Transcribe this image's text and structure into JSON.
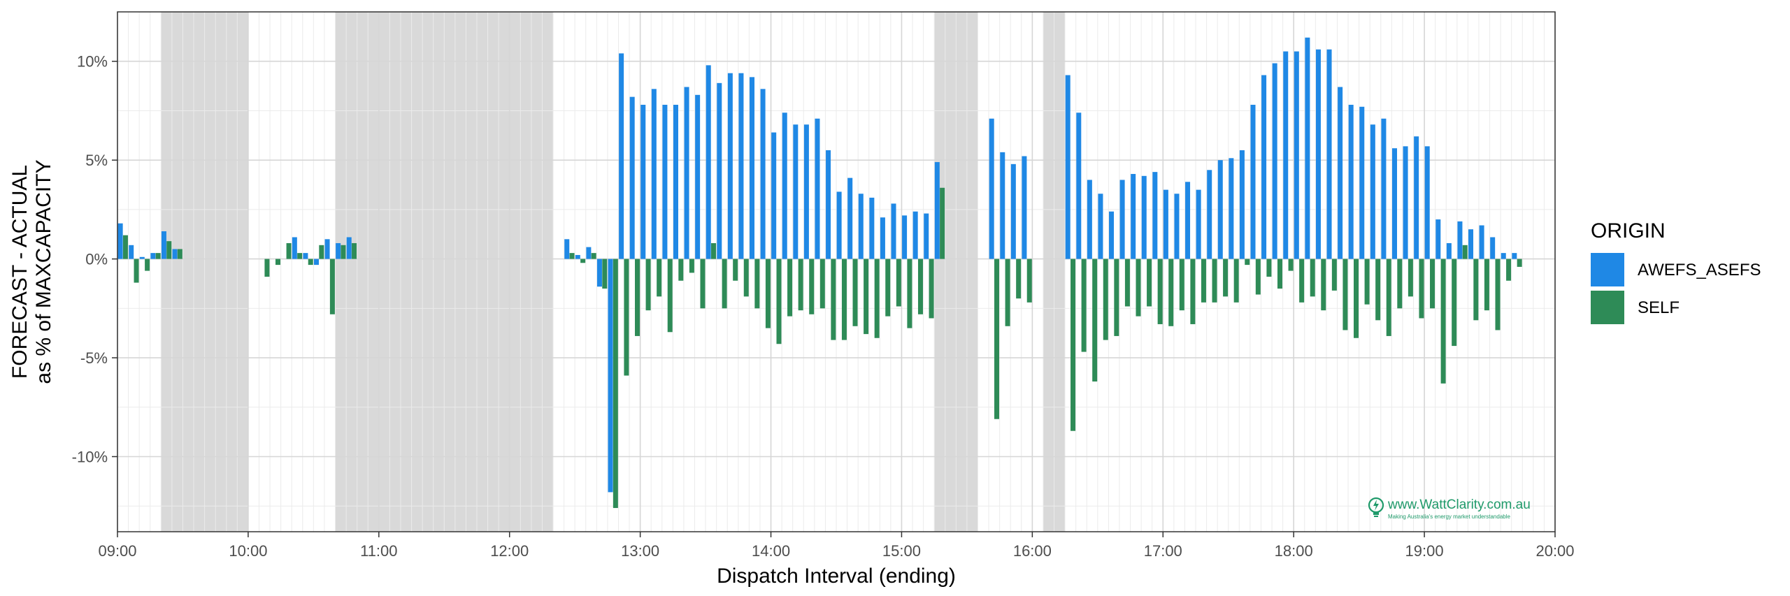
{
  "chart_data": {
    "type": "bar",
    "xlabel": "Dispatch Interval (ending)",
    "ylabel": [
      "FORECAST - ACTUAL",
      "as % of MAXCAPACITY"
    ],
    "x_ticks": [
      "09:00",
      "10:00",
      "11:00",
      "12:00",
      "13:00",
      "14:00",
      "15:00",
      "16:00",
      "17:00",
      "18:00",
      "19:00",
      "20:00"
    ],
    "y_ticks": [
      {
        "value": 10,
        "label": "10%"
      },
      {
        "value": 5,
        "label": "5%"
      },
      {
        "value": 0,
        "label": "0%"
      },
      {
        "value": -5,
        "label": "-5%"
      },
      {
        "value": -10,
        "label": "-10%"
      }
    ],
    "x_domain_hours": [
      9,
      20
    ],
    "y_domain": [
      -13.8,
      12.5
    ],
    "grid": true,
    "shaded_periods": [
      [
        "09:20",
        "10:00"
      ],
      [
        "10:40",
        "12:20"
      ],
      [
        "15:15",
        "15:35"
      ],
      [
        "16:05",
        "16:15"
      ]
    ],
    "legend": {
      "title": "ORIGIN",
      "position": "right",
      "items": [
        {
          "label": "AWEFS_ASEFS",
          "color": "#1f88e5"
        },
        {
          "label": "SELF",
          "color": "#2e8b57"
        }
      ]
    },
    "series": [
      {
        "name": "AWEFS_ASEFS",
        "color": "#1f88e5",
        "points": [
          [
            "09:05",
            1.8
          ],
          [
            "09:10",
            0.7
          ],
          [
            "09:15",
            0.1
          ],
          [
            "09:20",
            0.3
          ],
          [
            "09:25",
            1.4
          ],
          [
            "09:30",
            0.5
          ],
          [
            "10:25",
            1.1
          ],
          [
            "10:30",
            0.3
          ],
          [
            "10:35",
            -0.3
          ],
          [
            "10:40",
            1.0
          ],
          [
            "10:45",
            0.8
          ],
          [
            "10:50",
            1.1
          ],
          [
            "12:30",
            1.0
          ],
          [
            "12:35",
            0.2
          ],
          [
            "12:40",
            0.6
          ],
          [
            "12:45",
            -1.4
          ],
          [
            "12:50",
            -11.8
          ],
          [
            "12:55",
            10.4
          ],
          [
            "13:00",
            8.2
          ],
          [
            "13:05",
            7.8
          ],
          [
            "13:10",
            8.6
          ],
          [
            "13:15",
            7.8
          ],
          [
            "13:20",
            7.8
          ],
          [
            "13:25",
            8.7
          ],
          [
            "13:30",
            8.3
          ],
          [
            "13:35",
            9.8
          ],
          [
            "13:40",
            8.9
          ],
          [
            "13:45",
            9.4
          ],
          [
            "13:50",
            9.4
          ],
          [
            "13:55",
            9.2
          ],
          [
            "14:00",
            8.6
          ],
          [
            "14:05",
            6.4
          ],
          [
            "14:10",
            7.4
          ],
          [
            "14:15",
            6.8
          ],
          [
            "14:20",
            6.8
          ],
          [
            "14:25",
            7.1
          ],
          [
            "14:30",
            5.5
          ],
          [
            "14:35",
            3.4
          ],
          [
            "14:40",
            4.1
          ],
          [
            "14:45",
            3.3
          ],
          [
            "14:50",
            3.1
          ],
          [
            "14:55",
            2.1
          ],
          [
            "15:00",
            2.8
          ],
          [
            "15:05",
            2.2
          ],
          [
            "15:10",
            2.4
          ],
          [
            "15:15",
            2.3
          ],
          [
            "15:20",
            4.9
          ],
          [
            "15:45",
            7.1
          ],
          [
            "15:50",
            5.4
          ],
          [
            "15:55",
            4.8
          ],
          [
            "16:00",
            5.2
          ],
          [
            "16:20",
            9.3
          ],
          [
            "16:25",
            7.4
          ],
          [
            "16:30",
            4.0
          ],
          [
            "16:35",
            3.3
          ],
          [
            "16:40",
            2.4
          ],
          [
            "16:45",
            4.0
          ],
          [
            "16:50",
            4.3
          ],
          [
            "16:55",
            4.2
          ],
          [
            "17:00",
            4.4
          ],
          [
            "17:05",
            3.5
          ],
          [
            "17:10",
            3.3
          ],
          [
            "17:15",
            3.9
          ],
          [
            "17:20",
            3.5
          ],
          [
            "17:25",
            4.5
          ],
          [
            "17:30",
            5.0
          ],
          [
            "17:35",
            5.1
          ],
          [
            "17:40",
            5.5
          ],
          [
            "17:45",
            7.8
          ],
          [
            "17:50",
            9.3
          ],
          [
            "17:55",
            9.9
          ],
          [
            "18:00",
            10.5
          ],
          [
            "18:05",
            10.5
          ],
          [
            "18:10",
            11.2
          ],
          [
            "18:15",
            10.6
          ],
          [
            "18:20",
            10.6
          ],
          [
            "18:25",
            8.7
          ],
          [
            "18:30",
            7.8
          ],
          [
            "18:35",
            7.7
          ],
          [
            "18:40",
            6.8
          ],
          [
            "18:45",
            7.1
          ],
          [
            "18:50",
            5.6
          ],
          [
            "18:55",
            5.7
          ],
          [
            "19:00",
            6.2
          ],
          [
            "19:05",
            5.7
          ],
          [
            "19:10",
            2.0
          ],
          [
            "19:15",
            0.8
          ],
          [
            "19:20",
            1.9
          ],
          [
            "19:25",
            1.5
          ],
          [
            "19:30",
            1.7
          ],
          [
            "19:35",
            1.1
          ],
          [
            "19:40",
            0.3
          ],
          [
            "19:45",
            0.3
          ]
        ]
      },
      {
        "name": "SELF",
        "color": "#2e8b57",
        "points": [
          [
            "09:05",
            1.2
          ],
          [
            "09:10",
            -1.2
          ],
          [
            "09:15",
            -0.6
          ],
          [
            "09:20",
            0.3
          ],
          [
            "09:25",
            0.9
          ],
          [
            "09:30",
            0.5
          ],
          [
            "10:10",
            -0.9
          ],
          [
            "10:15",
            -0.3
          ],
          [
            "10:20",
            0.8
          ],
          [
            "10:25",
            0.3
          ],
          [
            "10:30",
            -0.3
          ],
          [
            "10:35",
            0.7
          ],
          [
            "10:40",
            -2.8
          ],
          [
            "10:45",
            0.7
          ],
          [
            "10:50",
            0.8
          ],
          [
            "12:30",
            0.3
          ],
          [
            "12:35",
            -0.2
          ],
          [
            "12:40",
            0.3
          ],
          [
            "12:45",
            -1.5
          ],
          [
            "12:50",
            -12.6
          ],
          [
            "12:55",
            -5.9
          ],
          [
            "13:00",
            -3.9
          ],
          [
            "13:05",
            -2.6
          ],
          [
            "13:10",
            -1.9
          ],
          [
            "13:15",
            -3.7
          ],
          [
            "13:20",
            -1.1
          ],
          [
            "13:25",
            -0.7
          ],
          [
            "13:30",
            -2.5
          ],
          [
            "13:35",
            0.8
          ],
          [
            "13:40",
            -2.5
          ],
          [
            "13:45",
            -1.1
          ],
          [
            "13:50",
            -1.9
          ],
          [
            "13:55",
            -2.5
          ],
          [
            "14:00",
            -3.5
          ],
          [
            "14:05",
            -4.3
          ],
          [
            "14:10",
            -2.9
          ],
          [
            "14:15",
            -2.6
          ],
          [
            "14:20",
            -2.8
          ],
          [
            "14:25",
            -2.5
          ],
          [
            "14:30",
            -4.1
          ],
          [
            "14:35",
            -4.1
          ],
          [
            "14:40",
            -3.4
          ],
          [
            "14:45",
            -3.8
          ],
          [
            "14:50",
            -4.0
          ],
          [
            "14:55",
            -2.9
          ],
          [
            "15:00",
            -2.4
          ],
          [
            "15:05",
            -3.5
          ],
          [
            "15:10",
            -2.8
          ],
          [
            "15:15",
            -3.0
          ],
          [
            "15:20",
            3.6
          ],
          [
            "15:45",
            -8.1
          ],
          [
            "15:50",
            -3.4
          ],
          [
            "15:55",
            -2.0
          ],
          [
            "16:00",
            -2.2
          ],
          [
            "16:20",
            -8.7
          ],
          [
            "16:25",
            -4.7
          ],
          [
            "16:30",
            -6.2
          ],
          [
            "16:35",
            -4.1
          ],
          [
            "16:40",
            -3.9
          ],
          [
            "16:45",
            -2.4
          ],
          [
            "16:50",
            -2.9
          ],
          [
            "16:55",
            -2.4
          ],
          [
            "17:00",
            -3.3
          ],
          [
            "17:05",
            -3.4
          ],
          [
            "17:10",
            -2.6
          ],
          [
            "17:15",
            -3.3
          ],
          [
            "17:20",
            -2.2
          ],
          [
            "17:25",
            -2.2
          ],
          [
            "17:30",
            -1.9
          ],
          [
            "17:35",
            -2.2
          ],
          [
            "17:40",
            -0.3
          ],
          [
            "17:45",
            -1.8
          ],
          [
            "17:50",
            -0.9
          ],
          [
            "17:55",
            -1.5
          ],
          [
            "18:00",
            -0.6
          ],
          [
            "18:05",
            -2.2
          ],
          [
            "18:10",
            -1.9
          ],
          [
            "18:15",
            -2.6
          ],
          [
            "18:20",
            -1.6
          ],
          [
            "18:25",
            -3.6
          ],
          [
            "18:30",
            -4.0
          ],
          [
            "18:35",
            -2.3
          ],
          [
            "18:40",
            -3.1
          ],
          [
            "18:45",
            -3.9
          ],
          [
            "18:50",
            -2.5
          ],
          [
            "18:55",
            -1.9
          ],
          [
            "19:00",
            -3.0
          ],
          [
            "19:05",
            -2.5
          ],
          [
            "19:10",
            -6.3
          ],
          [
            "19:15",
            -4.4
          ],
          [
            "19:20",
            0.7
          ],
          [
            "19:25",
            -3.1
          ],
          [
            "19:30",
            -2.6
          ],
          [
            "19:35",
            -3.6
          ],
          [
            "19:40",
            -1.1
          ],
          [
            "19:45",
            -0.4
          ]
        ]
      }
    ]
  },
  "watermark": {
    "text": "www.WattClarity.com.au",
    "tagline": "Making Australia's energy market understandable",
    "icon": "lightbulb-bolt-icon",
    "color": "#1f9a6a"
  }
}
